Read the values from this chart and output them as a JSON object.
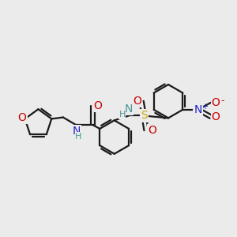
{
  "bg_color": "#ebebeb",
  "line_color": "#1a1a1a",
  "bond_lw": 1.6,
  "font_size": 10,
  "font_size_h": 8,
  "colors": {
    "O": "#cc0000",
    "N": "#2222cc",
    "S": "#ccaa00",
    "NH": "#4a9898",
    "C": "#1a1a1a"
  }
}
